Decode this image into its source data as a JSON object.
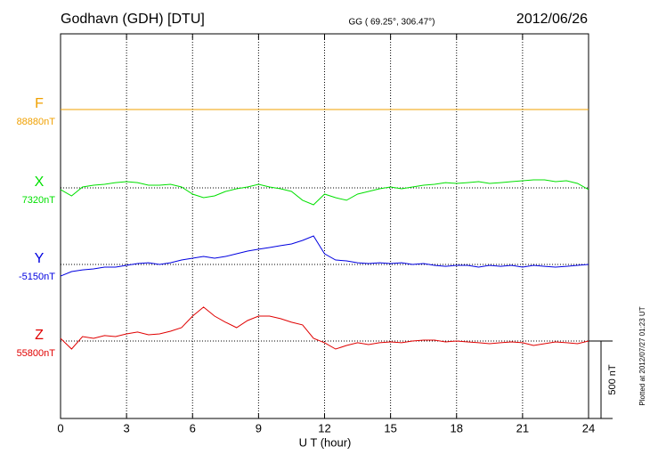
{
  "chart_data": {
    "type": "line",
    "title": "Godhavn (GDH)  [DTU]",
    "subtitle": "GG ( 69.25°, 306.47°)",
    "date": "2012/06/26",
    "x_label": "U T (hour)",
    "footnote": "Plotted at 2012/07/27 01:23 UT",
    "xlim": [
      0,
      24
    ],
    "xticks": [
      0,
      3,
      6,
      9,
      12,
      15,
      18,
      21,
      24
    ],
    "grid": true,
    "scale_bar": {
      "value": 500,
      "label": "500 nT"
    },
    "x": [
      0,
      0.5,
      1,
      1.5,
      2,
      2.5,
      3,
      3.5,
      4,
      4.5,
      5,
      5.5,
      6,
      6.5,
      7,
      7.5,
      8,
      8.5,
      9,
      9.5,
      10,
      10.5,
      11,
      11.5,
      12,
      12.5,
      13,
      13.5,
      14,
      14.5,
      15,
      15.5,
      16,
      16.5,
      17,
      17.5,
      18,
      18.5,
      19,
      19.5,
      20,
      20.5,
      21,
      21.5,
      22,
      22.5,
      23,
      23.5,
      24
    ],
    "series": [
      {
        "name": "F",
        "color": "#f0a000",
        "baseline": {
          "value": 88880,
          "label": "88880nT"
        },
        "values": [
          88880,
          88880,
          88880,
          88880,
          88880,
          88880,
          88880,
          88880,
          88880,
          88880,
          88880,
          88880,
          88880,
          88880,
          88880,
          88880,
          88880,
          88880,
          88880,
          88880,
          88880,
          88880,
          88880,
          88880,
          88880,
          88880,
          88880,
          88880,
          88880,
          88880,
          88880,
          88880,
          88880,
          88880,
          88880,
          88880,
          88880,
          88880,
          88880,
          88880,
          88880,
          88880,
          88880,
          88880,
          88880,
          88880,
          88880,
          88880,
          88880
        ]
      },
      {
        "name": "X",
        "color": "#00e000",
        "baseline": {
          "value": 7320,
          "label": "7320nT"
        },
        "values": [
          7309,
          7268,
          7326,
          7337,
          7343,
          7354,
          7360,
          7354,
          7337,
          7337,
          7343,
          7326,
          7280,
          7257,
          7268,
          7297,
          7314,
          7326,
          7343,
          7326,
          7314,
          7297,
          7240,
          7211,
          7280,
          7257,
          7240,
          7280,
          7297,
          7314,
          7326,
          7314,
          7326,
          7337,
          7343,
          7354,
          7349,
          7354,
          7360,
          7349,
          7354,
          7360,
          7366,
          7372,
          7372,
          7360,
          7366,
          7349,
          7309
        ]
      },
      {
        "name": "Y",
        "color": "#0000e0",
        "baseline": {
          "value": -5150,
          "label": "-5150nT"
        },
        "values": [
          -5225,
          -5196,
          -5185,
          -5179,
          -5167,
          -5167,
          -5156,
          -5144,
          -5139,
          -5150,
          -5139,
          -5121,
          -5110,
          -5098,
          -5110,
          -5098,
          -5081,
          -5064,
          -5052,
          -5041,
          -5029,
          -5018,
          -4995,
          -4966,
          -5081,
          -5121,
          -5127,
          -5139,
          -5144,
          -5139,
          -5144,
          -5139,
          -5150,
          -5144,
          -5156,
          -5162,
          -5156,
          -5156,
          -5167,
          -5156,
          -5162,
          -5156,
          -5167,
          -5156,
          -5162,
          -5167,
          -5162,
          -5156,
          -5150
        ]
      },
      {
        "name": "Z",
        "color": "#e00000",
        "baseline": {
          "value": 55800,
          "label": "55800nT"
        },
        "values": [
          55817,
          55748,
          55829,
          55817,
          55835,
          55829,
          55846,
          55858,
          55840,
          55846,
          55863,
          55886,
          55961,
          56019,
          55961,
          55921,
          55886,
          55932,
          55961,
          55961,
          55944,
          55921,
          55904,
          55817,
          55789,
          55748,
          55771,
          55789,
          55777,
          55789,
          55794,
          55789,
          55800,
          55806,
          55806,
          55794,
          55800,
          55794,
          55789,
          55783,
          55789,
          55794,
          55789,
          55771,
          55783,
          55794,
          55789,
          55783,
          55800
        ]
      }
    ]
  }
}
